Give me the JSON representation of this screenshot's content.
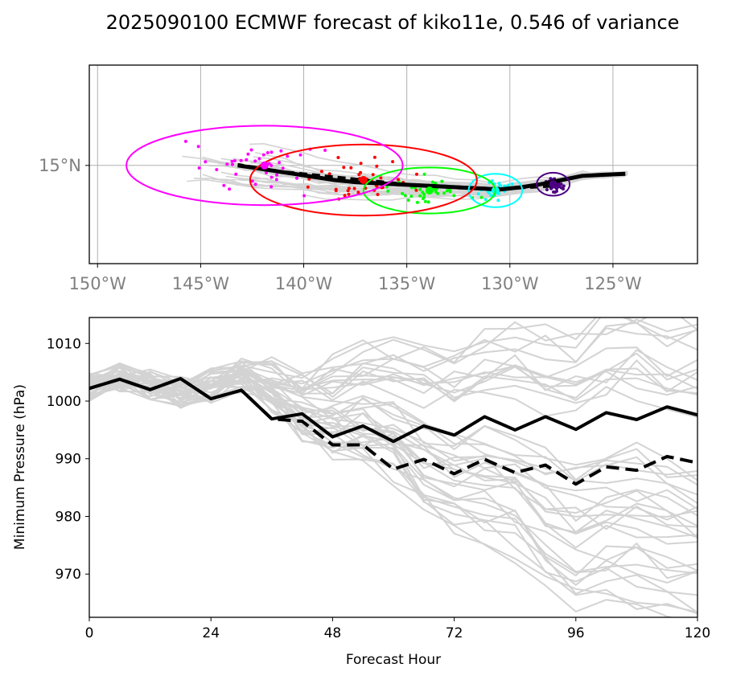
{
  "figure": {
    "title": "2025090100 ECMWF forecast of kiko11e, 0.546 of variance"
  },
  "chart_data": [
    {
      "type": "scatter",
      "subtype": "track-map",
      "xlim": [
        -150.4,
        -120.9
      ],
      "ylim": [
        10.3,
        19.8
      ],
      "xticks": [
        -150,
        -145,
        -140,
        -135,
        -130,
        -125
      ],
      "xtick_labels": [
        "150°W",
        "145°W",
        "140°W",
        "135°W",
        "130°W",
        "125°W"
      ],
      "yticks": [
        15
      ],
      "ytick_labels": [
        "15°N"
      ],
      "grid": true,
      "tick_label_color": "#808080",
      "mean_track": {
        "lon": [
          -124.4,
          -125.5,
          -126.5,
          -127.5,
          -128.5,
          -129.5,
          -130.5,
          -131.5,
          -132.5,
          -133.5,
          -134.5,
          -135.5,
          -136.5,
          -137.5,
          -138.5,
          -139.5,
          -140.5,
          -141.5,
          -142.5,
          -143.2
        ],
        "lat": [
          14.6,
          14.55,
          14.5,
          14.3,
          14.1,
          13.95,
          13.85,
          13.9,
          13.95,
          14.0,
          14.05,
          14.1,
          14.15,
          14.2,
          14.3,
          14.45,
          14.6,
          14.75,
          14.9,
          15.0
        ]
      },
      "deterministic_track": {
        "lon": [
          -128.0,
          -129.0,
          -130.0,
          -131.0,
          -132.0,
          -133.0,
          -134.0,
          -135.0,
          -136.0,
          -137.0,
          -138.0,
          -139.0,
          -140.0,
          -141.0,
          -142.0,
          -143.2
        ],
        "lat": [
          14.0,
          13.95,
          13.9,
          13.9,
          13.95,
          14.0,
          14.05,
          14.1,
          14.2,
          14.3,
          14.4,
          14.5,
          14.6,
          14.7,
          14.85,
          15.05
        ]
      },
      "ellipses": [
        {
          "color": "#4b0082",
          "lon": -127.9,
          "lat": 14.1,
          "rx": 0.8,
          "ry": 0.55
        },
        {
          "color": "#00ffff",
          "lon": -130.7,
          "lat": 13.8,
          "rx": 1.3,
          "ry": 0.8
        },
        {
          "color": "#00ff00",
          "lon": -133.9,
          "lat": 13.8,
          "rx": 3.2,
          "ry": 1.1
        },
        {
          "color": "#ff0000",
          "lon": -137.1,
          "lat": 14.3,
          "rx": 5.5,
          "ry": 1.7
        },
        {
          "color": "#ff00ff",
          "lon": -141.9,
          "lat": 15.0,
          "rx": 6.7,
          "ry": 1.9
        }
      ],
      "ensemble_member_count": 40
    },
    {
      "type": "line",
      "xlabel": "Forecast Hour",
      "ylabel": "Minimum Pressure (hPa)",
      "xlim": [
        0,
        120
      ],
      "ylim": [
        962.5,
        1014.5
      ],
      "xticks": [
        0,
        24,
        48,
        72,
        96,
        120
      ],
      "yticks": [
        970,
        980,
        990,
        1000,
        1010
      ],
      "x": [
        0,
        6,
        12,
        18,
        24,
        30,
        36,
        42,
        48,
        54,
        60,
        66,
        72,
        78,
        84,
        90,
        96,
        102,
        108,
        114,
        120
      ],
      "series": [
        {
          "style": "solid",
          "color": "#000000",
          "values": [
            1002.2,
            1003.8,
            1002.0,
            1003.9,
            1000.4,
            1001.9,
            996.9,
            997.8,
            993.8,
            995.7,
            993.0,
            995.7,
            994.1,
            997.3,
            995.0,
            997.3,
            995.1,
            998.0,
            996.8,
            999.0,
            997.6
          ]
        },
        {
          "style": "dashed",
          "color": "#000000",
          "values": [
            1002.2,
            1003.8,
            1002.0,
            1003.9,
            1000.4,
            1001.9,
            996.9,
            996.5,
            992.4,
            992.4,
            988.2,
            989.9,
            987.4,
            989.9,
            987.6,
            988.9,
            985.6,
            988.6,
            988.0,
            990.4,
            989.3
          ]
        }
      ],
      "ensemble_line_color": "#d3d3d3"
    }
  ]
}
